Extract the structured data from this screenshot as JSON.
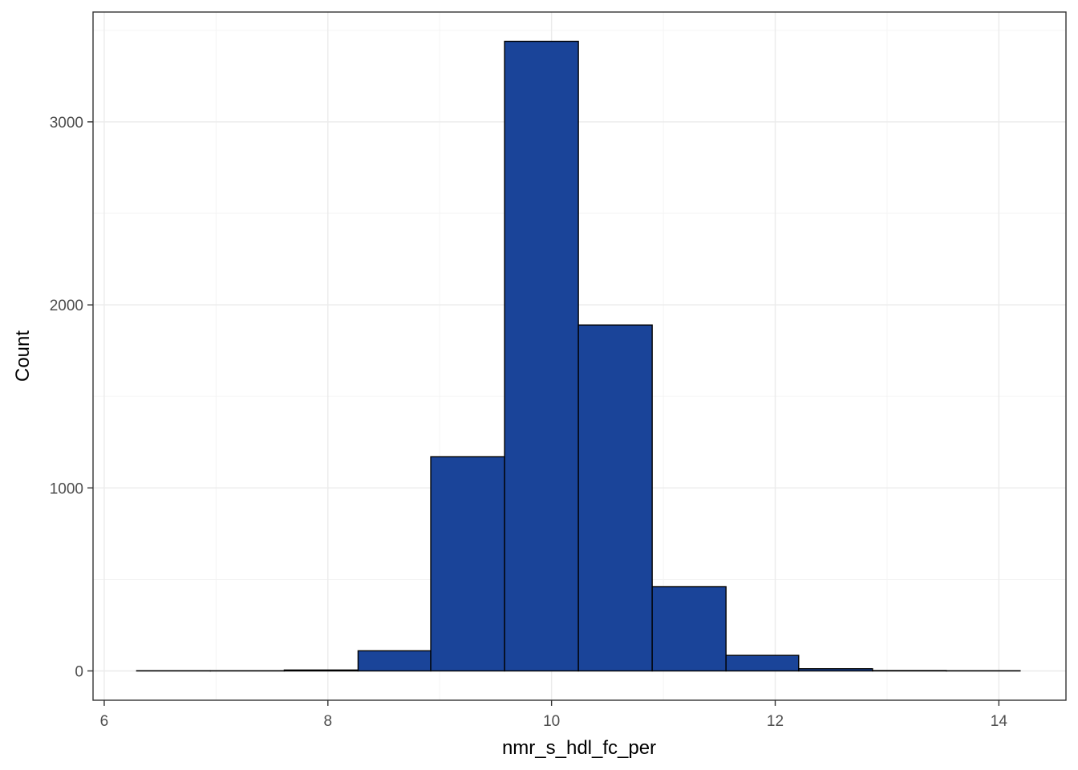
{
  "chart_data": {
    "type": "bar",
    "subtype": "histogram",
    "xlabel": "nmr_s_hdl_fc_per",
    "ylabel": "Count",
    "xlim": [
      5.9,
      14.6
    ],
    "ylim": [
      -160,
      3600
    ],
    "x_ticks": [
      6,
      8,
      10,
      12,
      14
    ],
    "y_ticks": [
      0,
      1000,
      2000,
      3000
    ],
    "x_tick_labels": [
      "6",
      "8",
      "10",
      "12",
      "14"
    ],
    "y_tick_labels": [
      "0",
      "1000",
      "2000",
      "3000"
    ],
    "grid": true,
    "bar_fill": "#1a4499",
    "bar_outline": "#000000",
    "bins": [
      {
        "x0": 6.29,
        "x1": 6.95,
        "count": 1
      },
      {
        "x0": 6.95,
        "x1": 7.61,
        "count": 1
      },
      {
        "x0": 7.61,
        "x1": 8.27,
        "count": 5
      },
      {
        "x0": 8.27,
        "x1": 8.92,
        "count": 110
      },
      {
        "x0": 8.92,
        "x1": 9.58,
        "count": 1170
      },
      {
        "x0": 9.58,
        "x1": 10.24,
        "count": 3440
      },
      {
        "x0": 10.24,
        "x1": 10.9,
        "count": 1890
      },
      {
        "x0": 10.9,
        "x1": 11.56,
        "count": 460
      },
      {
        "x0": 11.56,
        "x1": 12.21,
        "count": 85
      },
      {
        "x0": 12.21,
        "x1": 12.87,
        "count": 12
      },
      {
        "x0": 12.87,
        "x1": 13.53,
        "count": 2
      },
      {
        "x0": 13.53,
        "x1": 14.19,
        "count": 1
      }
    ]
  }
}
